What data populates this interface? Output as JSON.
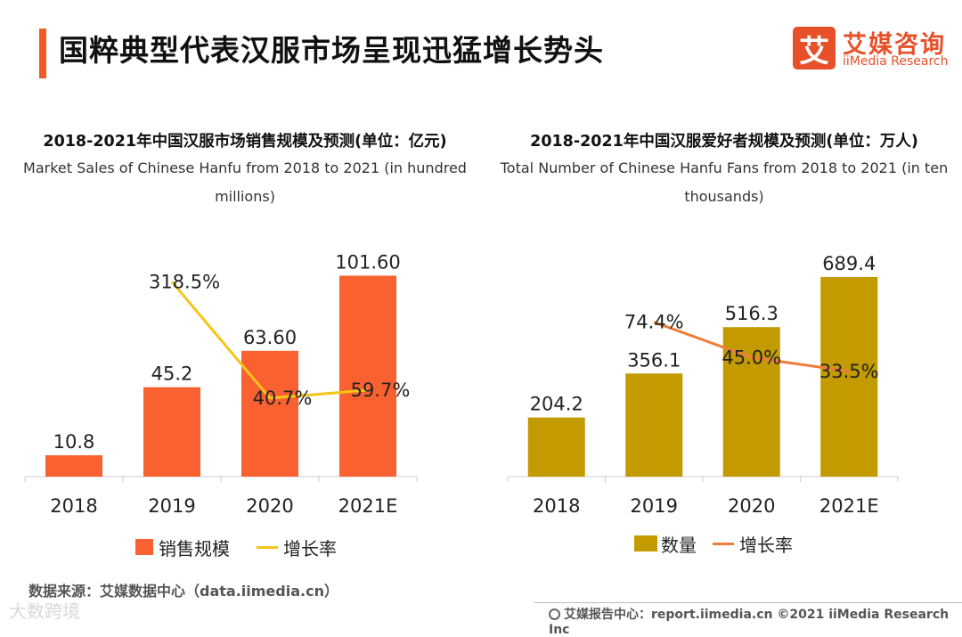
{
  "header": {
    "title": "国粹典型代表汉服市场呈现迅猛增长势头",
    "logo_glyph": "艾",
    "logo_cn": "艾媒咨询",
    "logo_en": "iiMedia Research"
  },
  "charts": {
    "left": {
      "title": "2018-2021年中国汉服市场销售规模及预测(单位：亿元)",
      "subtitle_line1": "Market Sales of Chinese Hanfu from 2018 to 2021 (in hundred",
      "subtitle_line2": "millions)",
      "legend_bar": "销售规模",
      "legend_line": "增长率"
    },
    "right": {
      "title": "2018-2021年中国汉服爱好者规模及预测(单位：万人)",
      "subtitle_line1": "Total Number of Chinese Hanfu Fans from 2018 to 2021 (in ten",
      "subtitle_line2": "thousands)",
      "legend_bar": "数量",
      "legend_line": "增长率"
    }
  },
  "chart_data": [
    {
      "type": "bar",
      "categories": [
        "2018",
        "2019",
        "2020",
        "2021E"
      ],
      "series": [
        {
          "name": "销售规模",
          "values": [
            10.8,
            45.2,
            63.6,
            101.6
          ],
          "labels": [
            "10.8",
            "45.2",
            "63.60",
            "101.60"
          ],
          "color": "#fa6131"
        },
        {
          "name": "增长率",
          "type": "line",
          "values": [
            null,
            318.5,
            40.7,
            59.7
          ],
          "labels": [
            "",
            "318.5%",
            "40.7%",
            "59.7%"
          ],
          "color": "#f5c518"
        }
      ],
      "title": "2018-2021年中国汉服市场销售规模及预测(单位：亿元)",
      "legend": "bottom"
    },
    {
      "type": "bar",
      "categories": [
        "2018",
        "2019",
        "2020",
        "2021E"
      ],
      "series": [
        {
          "name": "数量",
          "values": [
            204.2,
            356.1,
            516.3,
            689.4
          ],
          "labels": [
            "204.2",
            "356.1",
            "516.3",
            "689.4"
          ],
          "color": "#c39a00"
        },
        {
          "name": "增长率",
          "type": "line",
          "values": [
            null,
            74.4,
            45.0,
            33.5
          ],
          "labels": [
            "",
            "74.4%",
            "45.0%",
            "33.5%"
          ],
          "color": "#ee7d3a"
        }
      ],
      "title": "2018-2021年中国汉服爱好者规模及预测(单位：万人)",
      "legend": "bottom"
    }
  ],
  "footer": {
    "source": "数据来源：艾媒数据中心（data.iimedia.cn）",
    "watermark": "大数跨境",
    "report": "艾媒报告中心：report.iimedia.cn  ©2021  iiMedia Research  Inc"
  }
}
